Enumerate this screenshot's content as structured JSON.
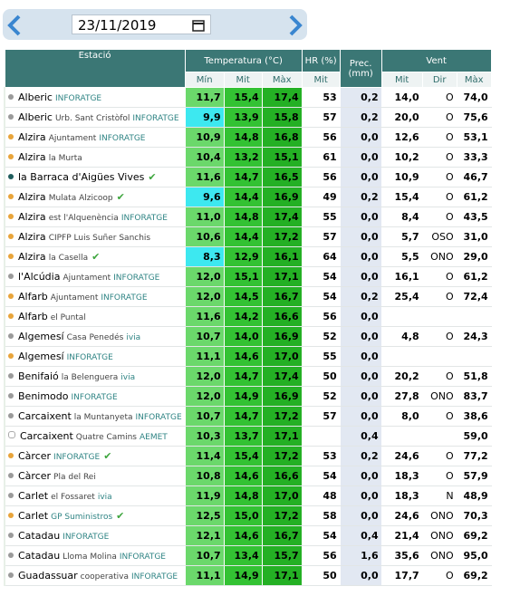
{
  "header": {
    "date": "23/11/2019"
  },
  "table": {
    "groups": [
      "Estació",
      "Temperatura (°C)",
      "HR (%)",
      "Prec. (mm)",
      "Vent"
    ],
    "subheaders": [
      "Mín",
      "Mit",
      "Màx",
      "Mit",
      "Mit",
      "Dir",
      "Màx"
    ],
    "rows": [
      {
        "station": "Alberic",
        "place": null,
        "tag": "INFORATGE",
        "dot": "#9a9a9a",
        "check": false,
        "cells": [
          "11,7",
          "15,4",
          "17,4",
          "53",
          "0,2",
          "14,0",
          "O",
          "74,0"
        ]
      },
      {
        "station": "Alberic",
        "place": "Urb. Sant Cristòfol",
        "tag": "INFORATGE",
        "dot": "#9a9a9a",
        "check": false,
        "cells": [
          "9,9",
          "13,9",
          "15,8",
          "57",
          "0,2",
          "20,0",
          "O",
          "75,6"
        ]
      },
      {
        "station": "Alzira",
        "place": "Ajuntament",
        "tag": "INFORATGE",
        "dot": "#e8a43a",
        "check": false,
        "cells": [
          "10,9",
          "14,8",
          "16,8",
          "56",
          "0,0",
          "12,6",
          "O",
          "53,1"
        ]
      },
      {
        "station": "Alzira",
        "place": "la Murta",
        "tag": null,
        "dot": "#e8a43a",
        "check": false,
        "cells": [
          "10,4",
          "13,2",
          "15,1",
          "61",
          "0,0",
          "10,2",
          "O",
          "33,3"
        ]
      },
      {
        "station": "la Barraca d'Aigües Vives",
        "place": null,
        "tag": null,
        "dot": "#1f5d5d",
        "check": true,
        "cells": [
          "11,6",
          "14,7",
          "16,5",
          "56",
          "0,0",
          "10,9",
          "O",
          "46,7"
        ]
      },
      {
        "station": "Alzira",
        "place": "Mulata Alzicoop",
        "tag": null,
        "dot": "#e8a43a",
        "check": true,
        "cells": [
          "9,6",
          "14,4",
          "16,9",
          "49",
          "0,2",
          "15,4",
          "O",
          "61,2"
        ]
      },
      {
        "station": "Alzira",
        "place": "est l'Alquenència",
        "tag": "INFORATGE",
        "dot": "#e8a43a",
        "check": false,
        "cells": [
          "11,0",
          "14,8",
          "17,4",
          "55",
          "0,0",
          "8,4",
          "O",
          "43,5"
        ]
      },
      {
        "station": "Alzira",
        "place": "CIPFP Luis Suñer Sanchis",
        "tag": null,
        "dot": "#e8a43a",
        "check": false,
        "cells": [
          "10,6",
          "14,4",
          "17,2",
          "57",
          "0,0",
          "5,7",
          "OSO",
          "31,0"
        ]
      },
      {
        "station": "Alzira",
        "place": "la Casella",
        "tag": null,
        "dot": "#e8a43a",
        "check": true,
        "cells": [
          "8,3",
          "12,9",
          "16,1",
          "64",
          "0,0",
          "5,5",
          "ONO",
          "29,0"
        ]
      },
      {
        "station": "l'Alcúdia",
        "place": "Ajuntament",
        "tag": "INFORATGE",
        "dot": "#9a9a9a",
        "check": false,
        "cells": [
          "12,0",
          "15,1",
          "17,1",
          "54",
          "0,0",
          "16,1",
          "O",
          "61,2"
        ]
      },
      {
        "station": "Alfarb",
        "place": "Ajuntament",
        "tag": "INFORATGE",
        "dot": "#e8a43a",
        "check": false,
        "cells": [
          "12,0",
          "14,5",
          "16,7",
          "54",
          "0,2",
          "25,4",
          "O",
          "72,4"
        ]
      },
      {
        "station": "Alfarb",
        "place": "el Puntal",
        "tag": null,
        "dot": "#e8a43a",
        "check": false,
        "cells": [
          "11,6",
          "14,2",
          "16,6",
          "56",
          "0,0",
          null,
          null,
          null
        ]
      },
      {
        "station": "Algemesí",
        "place": "Casa Penedés",
        "tag": "ivia",
        "dot": "#9a9a9a",
        "check": false,
        "cells": [
          "10,7",
          "14,0",
          "16,9",
          "52",
          "0,0",
          "4,8",
          "O",
          "24,3"
        ]
      },
      {
        "station": "Algemesí",
        "place": null,
        "tag": "INFORATGE",
        "dot": "#e8a43a",
        "check": false,
        "cells": [
          "11,1",
          "14,6",
          "17,0",
          "55",
          "0,0",
          null,
          null,
          null
        ]
      },
      {
        "station": "Benifaió",
        "place": "la Belenguera",
        "tag": "ivia",
        "dot": "#9a9a9a",
        "check": false,
        "cells": [
          "12,0",
          "14,7",
          "17,4",
          "50",
          "0,0",
          "20,2",
          "O",
          "51,8"
        ]
      },
      {
        "station": "Benimodo",
        "place": null,
        "tag": "INFORATGE",
        "dot": "#9a9a9a",
        "check": false,
        "cells": [
          "12,0",
          "14,9",
          "16,9",
          "52",
          "0,0",
          "27,8",
          "ONO",
          "83,7"
        ]
      },
      {
        "station": "Carcaixent",
        "place": "la Muntanyeta",
        "tag": "INFORATGE",
        "dot": "#9a9a9a",
        "check": false,
        "cells": [
          "10,7",
          "14,7",
          "17,2",
          "57",
          "0,0",
          "8,0",
          "O",
          "38,6"
        ]
      },
      {
        "station": "Carcaixent",
        "place": "Quatre Camins",
        "tag": "AEMET",
        "dot": "#ffffff",
        "check": false,
        "cells": [
          "10,3",
          "13,7",
          "17,1",
          null,
          "0,4",
          null,
          null,
          "59,0"
        ]
      },
      {
        "station": "Càrcer",
        "place": null,
        "tag": "INFORATGE",
        "dot": "#e8a43a",
        "check": true,
        "cells": [
          "11,4",
          "15,4",
          "17,2",
          "53",
          "0,2",
          "24,6",
          "O",
          "77,2"
        ]
      },
      {
        "station": "Càrcer",
        "place": "Pla del Rei",
        "tag": null,
        "dot": "#9a9a9a",
        "check": false,
        "cells": [
          "10,8",
          "14,6",
          "16,6",
          "54",
          "0,0",
          "18,3",
          "O",
          "57,9"
        ]
      },
      {
        "station": "Carlet",
        "place": "el Fossaret",
        "tag": "ivia",
        "dot": "#9a9a9a",
        "check": false,
        "cells": [
          "11,9",
          "14,8",
          "17,0",
          "48",
          "0,0",
          "18,3",
          "N",
          "48,9"
        ]
      },
      {
        "station": "Carlet",
        "place": null,
        "tag": "GP Suministros",
        "dot": "#e8a43a",
        "check": true,
        "cells": [
          "12,5",
          "15,0",
          "17,2",
          "58",
          "0,0",
          "24,6",
          "ONO",
          "70,3"
        ]
      },
      {
        "station": "Catadau",
        "place": null,
        "tag": "INFORATGE",
        "dot": "#9a9a9a",
        "check": false,
        "cells": [
          "12,1",
          "14,6",
          "16,7",
          "54",
          "0,4",
          "21,4",
          "ONO",
          "69,2"
        ]
      },
      {
        "station": "Catadau",
        "place": "Lloma Molina",
        "tag": "INFORATGE",
        "dot": "#9a9a9a",
        "check": false,
        "cells": [
          "10,7",
          "13,4",
          "15,7",
          "56",
          "1,6",
          "35,6",
          "ONO",
          "95,0"
        ]
      },
      {
        "station": "Guadassuar",
        "place": "cooperativa",
        "tag": "INFORATGE",
        "dot": "#9a9a9a",
        "check": false,
        "cells": [
          "11,1",
          "14,9",
          "17,1",
          "50",
          "0,0",
          "17,7",
          "O",
          "69,2"
        ]
      }
    ]
  }
}
